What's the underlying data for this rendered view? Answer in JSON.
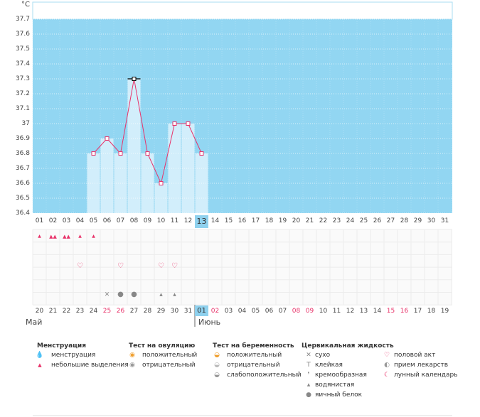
{
  "unit_label": "°C",
  "chart_data": {
    "type": "line",
    "ylim": [
      36.4,
      37.7
    ],
    "y_ticks": [
      "37.7",
      "37.6",
      "37.5",
      "37.4",
      "37.3",
      "37.2",
      "37.1",
      "37",
      "36.9",
      "36.8",
      "36.7",
      "36.6",
      "36.5",
      "36.4"
    ],
    "x_days": [
      "01",
      "02",
      "03",
      "04",
      "05",
      "06",
      "07",
      "08",
      "09",
      "10",
      "11",
      "12",
      "13",
      "14",
      "15",
      "16",
      "17",
      "18",
      "19",
      "20",
      "21",
      "22",
      "23",
      "24",
      "25",
      "26",
      "27",
      "28",
      "29",
      "30",
      "31"
    ],
    "selected_day": "13",
    "series": [
      {
        "days": [
          5,
          6,
          7,
          8,
          9,
          10,
          11,
          12,
          13
        ],
        "values": [
          36.8,
          36.9,
          36.8,
          37.3,
          36.8,
          36.6,
          37.0,
          37.0,
          36.8
        ]
      }
    ]
  },
  "symptom_rows": {
    "menstruation": [
      {
        "day": 1,
        "icon": "drop-small-icon"
      },
      {
        "day": 2,
        "icon": "drop-large-icon"
      },
      {
        "day": 3,
        "icon": "drop-large-icon"
      },
      {
        "day": 4,
        "icon": "drop-small-icon"
      },
      {
        "day": 5,
        "icon": "drop-small-icon"
      }
    ],
    "intercourse": [
      4,
      7,
      10,
      11
    ],
    "cervical": [
      {
        "day": 6,
        "icon": "cross-icon",
        "glyph": "✕"
      },
      {
        "day": 7,
        "icon": "egg-white-icon",
        "glyph": "●"
      },
      {
        "day": 8,
        "icon": "egg-white-icon",
        "glyph": "●"
      },
      {
        "day": 10,
        "icon": "watery-icon",
        "glyph": "▴"
      },
      {
        "day": 11,
        "icon": "watery-icon",
        "glyph": "▴"
      }
    ]
  },
  "cycle_days": [
    {
      "t": "20",
      "red": false
    },
    {
      "t": "21",
      "red": false
    },
    {
      "t": "22",
      "red": false
    },
    {
      "t": "23",
      "red": false
    },
    {
      "t": "24",
      "red": false
    },
    {
      "t": "25",
      "red": true
    },
    {
      "t": "26",
      "red": true
    },
    {
      "t": "27",
      "red": false
    },
    {
      "t": "28",
      "red": false
    },
    {
      "t": "29",
      "red": false
    },
    {
      "t": "30",
      "red": false
    },
    {
      "t": "31",
      "red": false
    },
    {
      "t": "01",
      "red": false,
      "sel": true
    },
    {
      "t": "02",
      "red": true
    },
    {
      "t": "03",
      "red": false
    },
    {
      "t": "04",
      "red": false
    },
    {
      "t": "05",
      "red": false
    },
    {
      "t": "06",
      "red": false
    },
    {
      "t": "07",
      "red": false
    },
    {
      "t": "08",
      "red": true
    },
    {
      "t": "09",
      "red": true
    },
    {
      "t": "10",
      "red": false
    },
    {
      "t": "11",
      "red": false
    },
    {
      "t": "12",
      "red": false
    },
    {
      "t": "13",
      "red": false
    },
    {
      "t": "14",
      "red": false
    },
    {
      "t": "15",
      "red": true
    },
    {
      "t": "16",
      "red": true
    },
    {
      "t": "17",
      "red": false
    },
    {
      "t": "18",
      "red": false
    },
    {
      "t": "19",
      "red": false
    }
  ],
  "months": {
    "may": "Май",
    "june": "Июнь"
  },
  "legend": {
    "menstruation": {
      "title": "Менструация",
      "items": [
        "менструация",
        "небольшие выделения"
      ]
    },
    "ovulation_test": {
      "title": "Тест на овуляцию",
      "items": [
        "положительный",
        "отрицательный"
      ]
    },
    "pregnancy_test": {
      "title": "Тест на беременность",
      "items": [
        "положительный",
        "отрицательный",
        "слабоположительный"
      ]
    },
    "cervical_fluid": {
      "title": "Цервикальная жидкость",
      "items": [
        "сухо",
        "клейкая",
        "кремообразная",
        "водянистая",
        "яичный белок"
      ]
    },
    "other": {
      "items": [
        "половой акт",
        "прием лекарств",
        "лунный календарь"
      ]
    }
  },
  "colors": {
    "plot_bg": "#92d6f2",
    "bar_fill": "#d2eefb",
    "line": "#e8336a",
    "accent_red": "#e8336a",
    "selected": "#8fd1ee"
  }
}
